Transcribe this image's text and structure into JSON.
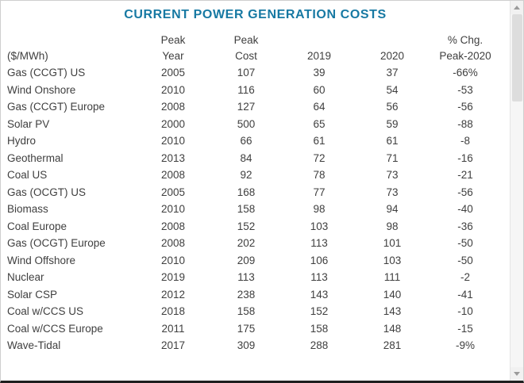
{
  "colors": {
    "title": "#1779a3",
    "text": "#3f3f3f",
    "frame_border": "#cfcfcf",
    "bottom_bar": "#1f1f1f"
  },
  "header": {
    "col1": {
      "line1": "",
      "line2": "($/MWh)"
    },
    "col2": {
      "line1": "Peak",
      "line2": "Year"
    },
    "col3": {
      "line1": "Peak",
      "line2": "Cost"
    },
    "col4": {
      "line1": "",
      "line2": "2019"
    },
    "col5": {
      "line1": "",
      "line2": "2020"
    },
    "col6": {
      "line1": "% Chg.",
      "line2": "Peak-2020"
    }
  },
  "chart_data": {
    "type": "table",
    "title": "CURRENT POWER GENERATION COSTS",
    "columns": [
      "($/MWh)",
      "Peak Year",
      "Peak Cost",
      "2019",
      "2020",
      "% Chg. Peak-2020"
    ],
    "rows": [
      [
        "Gas (CCGT) US",
        "2005",
        "107",
        "39",
        "37",
        "-66%"
      ],
      [
        "Wind Onshore",
        "2010",
        "116",
        "60",
        "54",
        "-53"
      ],
      [
        "Gas (CCGT) Europe",
        "2008",
        "127",
        "64",
        "56",
        "-56"
      ],
      [
        "Solar PV",
        "2000",
        "500",
        "65",
        "59",
        "-88"
      ],
      [
        "Hydro",
        "2010",
        "66",
        "61",
        "61",
        "-8"
      ],
      [
        "Geothermal",
        "2013",
        "84",
        "72",
        "71",
        "-16"
      ],
      [
        "Coal US",
        "2008",
        "92",
        "78",
        "73",
        "-21"
      ],
      [
        "Gas (OCGT) US",
        "2005",
        "168",
        "77",
        "73",
        "-56"
      ],
      [
        "Biomass",
        "2010",
        "158",
        "98",
        "94",
        "-40"
      ],
      [
        "Coal Europe",
        "2008",
        "152",
        "103",
        "98",
        "-36"
      ],
      [
        "Gas (OCGT) Europe",
        "2008",
        "202",
        "113",
        "101",
        "-50"
      ],
      [
        "Wind Offshore",
        "2010",
        "209",
        "106",
        "103",
        "-50"
      ],
      [
        "Nuclear",
        "2019",
        "113",
        "113",
        "111",
        "-2"
      ],
      [
        "Solar CSP",
        "2012",
        "238",
        "143",
        "140",
        "-41"
      ],
      [
        "Coal w/CCS US",
        "2018",
        "158",
        "152",
        "143",
        "-10"
      ],
      [
        "Coal w/CCS Europe",
        "2011",
        "175",
        "158",
        "148",
        "-15"
      ],
      [
        "Wave-Tidal",
        "2017",
        "309",
        "288",
        "281",
        "-9%"
      ]
    ]
  }
}
